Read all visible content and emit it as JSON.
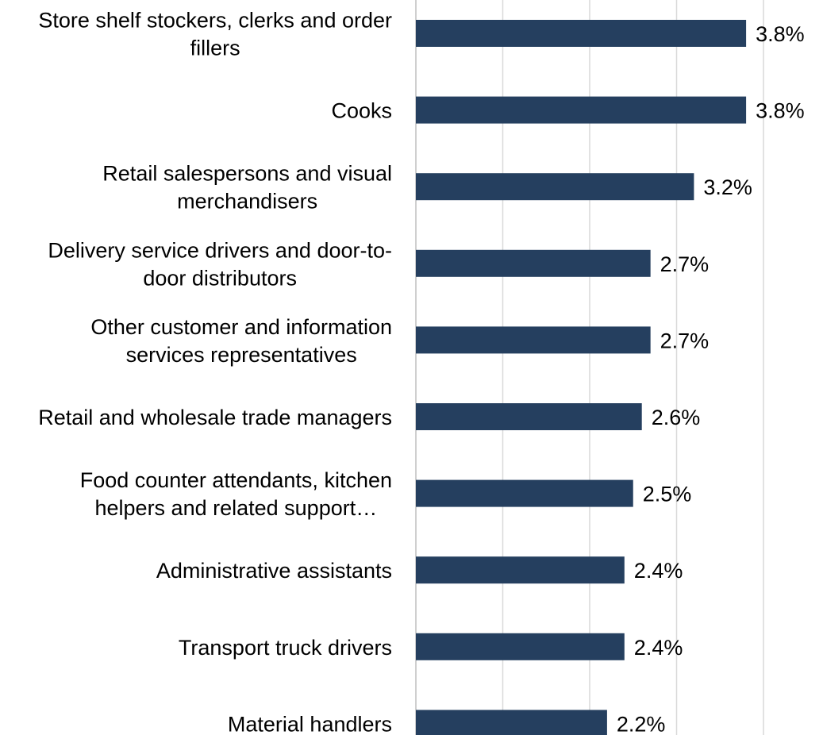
{
  "chart_data": {
    "type": "bar",
    "orientation": "horizontal",
    "categories": [
      [
        "Store shelf stockers, clerks and order",
        "fillers"
      ],
      [
        "Cooks"
      ],
      [
        "Retail salespersons and visual",
        "merchandisers"
      ],
      [
        "Delivery service drivers and door-to-",
        "door distributors"
      ],
      [
        "Other customer and information",
        "services representatives"
      ],
      [
        "Retail and wholesale trade managers"
      ],
      [
        "Food counter attendants, kitchen",
        "helpers and related support…"
      ],
      [
        "Administrative assistants"
      ],
      [
        "Transport truck drivers"
      ],
      [
        "Material handlers"
      ]
    ],
    "values": [
      3.8,
      3.8,
      3.2,
      2.7,
      2.7,
      2.6,
      2.5,
      2.4,
      2.4,
      2.2
    ],
    "value_labels": [
      "3.8%",
      "3.8%",
      "3.2%",
      "2.7%",
      "2.7%",
      "2.6%",
      "2.5%",
      "2.4%",
      "2.4%",
      "2.2%"
    ],
    "xlim": [
      0,
      4
    ],
    "gridlines": [
      0,
      1,
      2,
      3,
      4
    ],
    "grid": true,
    "bar_color": "#253f5f",
    "grid_color": "#d9d9d9",
    "axis_color": "#bfbfbf",
    "title": "",
    "xlabel": "",
    "ylabel": "",
    "legend": false
  }
}
